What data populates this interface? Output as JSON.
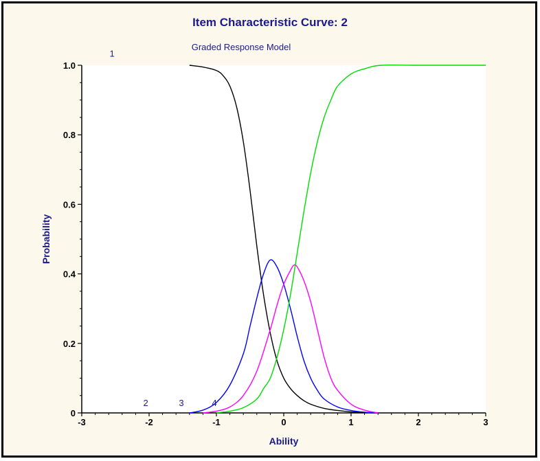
{
  "colors": {
    "panel_bg": "#fdf8ec",
    "plot_bg": "#ffffff",
    "title": "#1a1a8c",
    "axis_label": "#1a1a8c",
    "curve_label": "#1a1a8c"
  },
  "chart_data": {
    "type": "line",
    "title": "Item Characteristic Curve: 2",
    "subtitle": "Graded Response Model",
    "xlabel": "Ability",
    "ylabel": "Probability",
    "xlim": [
      -3,
      3
    ],
    "ylim": [
      0,
      1
    ],
    "x_ticks": [
      -3,
      -2,
      -1,
      0,
      1,
      2,
      3
    ],
    "x_tick_labels": [
      "-3",
      "-2",
      "-1",
      "0",
      "1",
      "2",
      "3"
    ],
    "y_ticks": [
      0,
      0.2,
      0.4,
      0.6,
      0.8,
      1.0
    ],
    "y_tick_labels": [
      "0",
      "0.2",
      "0.4",
      "0.6",
      "0.8",
      "1.0"
    ],
    "grid": false,
    "legend": "none",
    "series": [
      {
        "label": "1",
        "color": "#000000",
        "x": [
          -1.4,
          -1.2,
          -1.0,
          -0.9,
          -0.8,
          -0.7,
          -0.6,
          -0.5,
          -0.4,
          -0.3,
          -0.2,
          -0.1,
          0.0,
          0.1,
          0.2,
          0.3,
          0.4,
          0.6,
          0.8,
          1.0,
          1.2,
          1.4
        ],
        "y": [
          1.0,
          0.995,
          0.985,
          0.97,
          0.94,
          0.88,
          0.78,
          0.64,
          0.48,
          0.34,
          0.23,
          0.15,
          0.1,
          0.07,
          0.05,
          0.035,
          0.025,
          0.013,
          0.007,
          0.003,
          0.001,
          0.0
        ]
      },
      {
        "label": "2",
        "color": "#0000ff",
        "x": [
          -1.4,
          -1.2,
          -1.0,
          -0.8,
          -0.6,
          -0.5,
          -0.4,
          -0.3,
          -0.2,
          -0.1,
          0.0,
          0.1,
          0.2,
          0.3,
          0.4,
          0.5,
          0.6,
          0.8,
          1.0,
          1.2,
          1.4
        ],
        "y": [
          0.0,
          0.008,
          0.03,
          0.08,
          0.17,
          0.25,
          0.33,
          0.4,
          0.44,
          0.42,
          0.37,
          0.3,
          0.22,
          0.15,
          0.1,
          0.065,
          0.04,
          0.017,
          0.007,
          0.002,
          0.0
        ]
      },
      {
        "label": "3",
        "color": "#ff00ff",
        "x": [
          -1.2,
          -1.0,
          -0.8,
          -0.6,
          -0.4,
          -0.2,
          -0.1,
          0.0,
          0.1,
          0.15,
          0.2,
          0.3,
          0.4,
          0.5,
          0.6,
          0.7,
          0.8,
          1.0,
          1.2,
          1.4
        ],
        "y": [
          0.0,
          0.005,
          0.017,
          0.05,
          0.12,
          0.24,
          0.31,
          0.37,
          0.41,
          0.425,
          0.42,
          0.38,
          0.32,
          0.24,
          0.16,
          0.1,
          0.065,
          0.025,
          0.008,
          0.0
        ]
      },
      {
        "label": "4",
        "color": "#00dd00",
        "x": [
          -1.0,
          -0.8,
          -0.6,
          -0.4,
          -0.3,
          -0.2,
          -0.1,
          0.0,
          0.1,
          0.2,
          0.3,
          0.4,
          0.5,
          0.6,
          0.7,
          0.8,
          1.0,
          1.2,
          1.45,
          2.0,
          3.0
        ],
        "y": [
          0.0,
          0.005,
          0.015,
          0.04,
          0.07,
          0.1,
          0.16,
          0.24,
          0.34,
          0.46,
          0.58,
          0.69,
          0.78,
          0.85,
          0.9,
          0.94,
          0.975,
          0.99,
          1.0,
          1.0,
          1.0
        ]
      }
    ],
    "curve_label_positions": [
      {
        "label": "1",
        "x": -2.55,
        "y": 1.025
      },
      {
        "label": "2",
        "x": -2.05,
        "y": 0.02
      },
      {
        "label": "3",
        "x": -1.52,
        "y": 0.02
      },
      {
        "label": "4",
        "x": -1.03,
        "y": 0.02
      }
    ]
  }
}
